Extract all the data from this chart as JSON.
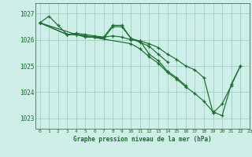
{
  "background_color": "#ceeee8",
  "grid_color": "#9ecfc8",
  "line_color": "#1a6e2e",
  "xlabel": "Graphe pression niveau de la mer (hPa)",
  "ylim": [
    1022.6,
    1027.4
  ],
  "xlim": [
    -0.5,
    23
  ],
  "yticks": [
    1023,
    1024,
    1025,
    1026,
    1027
  ],
  "xticks": [
    0,
    1,
    2,
    3,
    4,
    5,
    6,
    7,
    8,
    9,
    10,
    11,
    12,
    13,
    14,
    15,
    16,
    17,
    18,
    19,
    20,
    21,
    22,
    23
  ],
  "series": [
    {
      "x": [
        0,
        1,
        2,
        3,
        4,
        5,
        6,
        7,
        8,
        9,
        10,
        11,
        12,
        13,
        14,
        15,
        16,
        17,
        18,
        19,
        20,
        21,
        22
      ],
      "y": [
        1026.65,
        1026.9,
        1026.55,
        1026.2,
        1026.2,
        1026.1,
        1026.1,
        1026.1,
        1026.15,
        1026.1,
        1026.0,
        1025.95,
        1025.85,
        1025.7,
        1025.45,
        1025.25,
        1025.0,
        1024.85,
        1024.55,
        1023.2,
        1023.55,
        1024.25,
        1025.0
      ]
    },
    {
      "x": [
        0,
        3,
        4,
        5,
        6,
        7,
        8,
        9,
        10,
        11,
        12,
        13,
        14,
        15,
        16
      ],
      "y": [
        1026.65,
        1026.2,
        1026.2,
        1026.15,
        1026.1,
        1026.05,
        1026.5,
        1026.5,
        1026.05,
        1025.95,
        1025.45,
        1025.2,
        1024.8,
        1024.55,
        1024.25
      ]
    },
    {
      "x": [
        0,
        3,
        4,
        5,
        6,
        7,
        8,
        9,
        10,
        11,
        12,
        13,
        14
      ],
      "y": [
        1026.65,
        1026.2,
        1026.25,
        1026.2,
        1026.15,
        1026.1,
        1026.55,
        1026.55,
        1026.05,
        1025.9,
        1025.75,
        1025.45,
        1025.15
      ]
    },
    {
      "x": [
        0,
        4,
        10,
        11,
        12,
        13,
        14,
        15,
        16,
        17,
        18,
        19,
        20,
        21,
        22
      ],
      "y": [
        1026.65,
        1026.2,
        1025.85,
        1025.65,
        1025.35,
        1025.1,
        1024.75,
        1024.5,
        1024.2,
        1023.95,
        1023.65,
        1023.25,
        1023.1,
        1024.3,
        1025.0
      ]
    }
  ]
}
